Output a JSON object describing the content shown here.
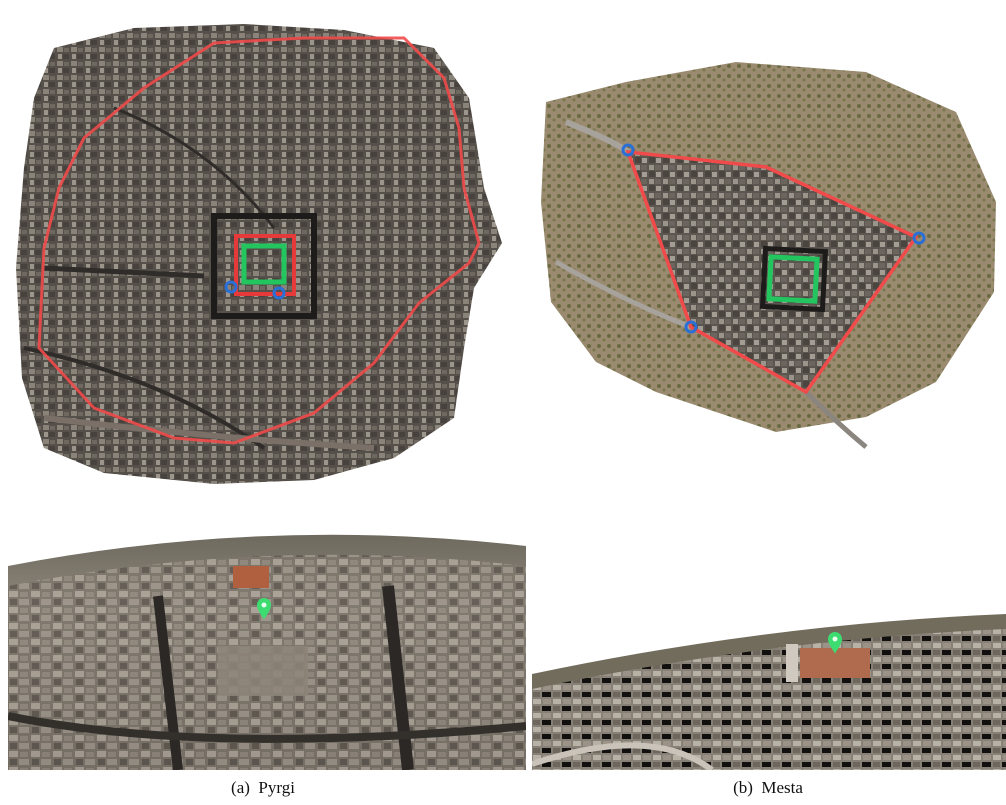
{
  "figure": {
    "panels": [
      {
        "id": "a",
        "caption_label": "(a)",
        "caption_name": "Pyrgi"
      },
      {
        "id": "b",
        "caption_label": "(b)",
        "caption_name": "Mesta"
      }
    ]
  },
  "colors": {
    "outer_boundary": "#f04a4a",
    "inner_boundary": "#e63a3a",
    "center_square": "#22c55e",
    "entry_markers": "#2a6fd6",
    "map_marker": "#3ddc70",
    "roof_tone_dark": "#3b3733",
    "roof_tone_mid": "#6e6760",
    "roof_tone_light": "#a8a29a",
    "vegetation": "#5a5a3c"
  },
  "icons": [
    "entry-point-icon",
    "location-pin-icon"
  ]
}
